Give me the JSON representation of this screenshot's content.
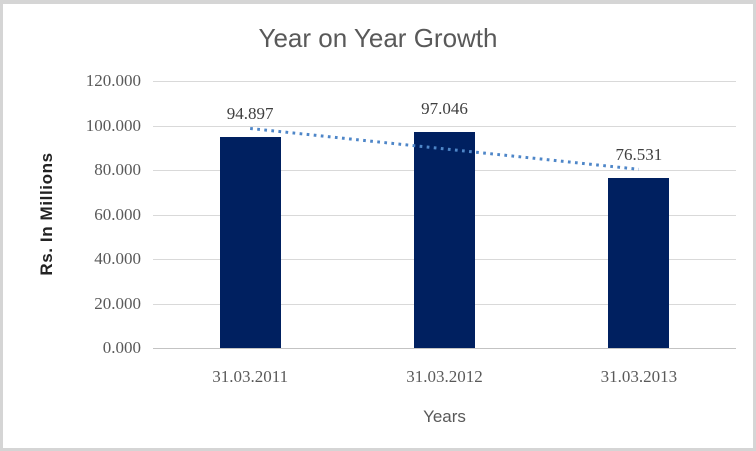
{
  "title": "Year on Year Growth",
  "colors": {
    "bar": "#002060",
    "trendline": "#4e86c8",
    "gridline": "#d9d9d9",
    "title_text": "#595959",
    "tick_text": "#595959",
    "data_label_text": "#3f3f3f",
    "axis_title_text": "#222222",
    "border": "#d5d5d5",
    "background": "#ffffff"
  },
  "chart_data": {
    "type": "bar",
    "title": "Year on Year Growth",
    "categories": [
      "31.03.2011",
      "31.03.2012",
      "31.03.2013"
    ],
    "values": [
      94.897,
      97.046,
      76.531
    ],
    "data_labels": [
      "94.897",
      "97.046",
      "76.531"
    ],
    "xlabel": "Years",
    "ylabel": "Rs. In Millions",
    "ylim": [
      0,
      120
    ],
    "ytick_step": 20,
    "ytick_labels": [
      "0.000",
      "20.000",
      "40.000",
      "60.000",
      "80.000",
      "100.000",
      "120.000"
    ],
    "grid": true,
    "legend": false,
    "trendline": {
      "type": "linear",
      "style": "dotted",
      "start_value": 98.674,
      "end_value": 80.308
    }
  }
}
